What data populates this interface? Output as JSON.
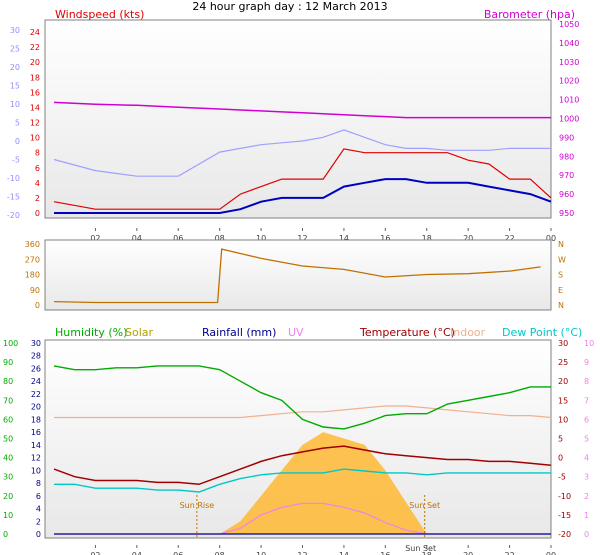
{
  "title": "24 hour graph day : 12 March 2013",
  "colors": {
    "wind": "#e00000",
    "gust": "#e00000",
    "avg": "#0000c0",
    "baro": "#d000d0",
    "temp_axis": "#9090ff",
    "direction": "#c07000",
    "humidity": "#00aa00",
    "solar": "#b0a000",
    "rainfall": "#00008b",
    "uv": "#ee82ee",
    "temperature": "#a00000",
    "indoor": "#f0b090",
    "dewpoint": "#00c8c8",
    "feel": "#a0a0ff",
    "solar_fill": "#ffb833",
    "plot_bg": "#e8e8e8"
  },
  "x_ticks": [
    "02",
    "04",
    "06",
    "08",
    "10",
    "12",
    "14",
    "16",
    "18",
    "20",
    "22",
    "00"
  ],
  "panel1": {
    "label_wind": "Windspeed (kts)",
    "label_baro": "Barometer (hpa)",
    "left_outer_ticks": [
      "30",
      "25",
      "20",
      "15",
      "10",
      "5",
      "0",
      "-5",
      "-10",
      "-15",
      "-20"
    ],
    "left_inner_ticks": [
      "24",
      "22",
      "20",
      "18",
      "16",
      "14",
      "12",
      "10",
      "8",
      "6",
      "4",
      "2",
      "0"
    ],
    "right_ticks": [
      "1050",
      "1040",
      "1030",
      "1020",
      "1010",
      "1000",
      "990",
      "980",
      "970",
      "960",
      "950"
    ]
  },
  "panel2": {
    "left_ticks": [
      "360",
      "270",
      "180",
      "90",
      "0"
    ],
    "right_ticks": [
      "N",
      "W",
      "S",
      "E",
      "N"
    ]
  },
  "panel3": {
    "labels": {
      "humidity": "Humidity (%)",
      "solar": "Solar",
      "rainfall": "Rainfall (mm)",
      "uv": "UV",
      "temperature": "Temperature (°C)",
      "indoor": "Indoor",
      "dewpoint": "Dew Point (°C)"
    },
    "humidity_ticks": [
      "100",
      "90",
      "80",
      "70",
      "60",
      "50",
      "40",
      "30",
      "20",
      "10",
      "0"
    ],
    "rain_ticks": [
      "30",
      "28",
      "26",
      "24",
      "22",
      "20",
      "18",
      "16",
      "14",
      "12",
      "10",
      "8",
      "6",
      "4",
      "2",
      "0"
    ],
    "temp_ticks": [
      "30",
      "25",
      "20",
      "15",
      "10",
      "5",
      "0",
      "-5",
      "-10",
      "-15",
      "-20"
    ],
    "uv_ticks": [
      "10",
      "9",
      "8",
      "7",
      "6",
      "5",
      "4",
      "3",
      "2",
      "1",
      "0"
    ],
    "sunrise": "Sun Rise",
    "sunset": "Sun Set",
    "sunrise_axis": "Sun Rise",
    "sunset_axis": "Sun Set"
  },
  "chart_data": [
    {
      "type": "line",
      "title": "24 hour graph day : 12 March 2013",
      "x_hours": [
        0,
        2,
        4,
        6,
        8,
        9,
        10,
        11,
        12,
        13,
        14,
        15,
        16,
        17,
        18,
        19,
        20,
        21,
        22,
        23,
        24
      ],
      "series": [
        {
          "name": "Windspeed (kts)",
          "values": [
            1.5,
            0.5,
            0.5,
            0.5,
            0.5,
            2.5,
            3.5,
            4.5,
            4.5,
            4.5,
            8.5,
            8,
            8,
            8,
            8,
            8,
            7,
            6.5,
            4.5,
            4.5,
            2
          ]
        },
        {
          "name": "Barometer (hpa)",
          "values": [
            1008.5,
            1007.5,
            1007,
            1006,
            1005,
            1004.5,
            1004,
            1003.5,
            1003,
            1002.5,
            1002,
            1001.5,
            1001,
            1000.5,
            1000.5,
            1000.5,
            1000.5,
            1000.5,
            1000.5,
            1000.5,
            1000.5
          ]
        },
        {
          "values": [
            -5,
            -8,
            -9.5,
            -9.5,
            -3,
            -2,
            -1,
            -0.5,
            0,
            1,
            3,
            1,
            -1,
            -2,
            -2,
            -2.5,
            -2.5,
            -2.5,
            -2,
            -2,
            -2
          ]
        },
        {
          "values": [
            0,
            0,
            0,
            0,
            0,
            0.5,
            1.5,
            2,
            2,
            2,
            3.5,
            4,
            4.5,
            4.5,
            4,
            4,
            4,
            3.5,
            3,
            2.5,
            1.5
          ]
        }
      ],
      "ylim_wind": [
        0,
        25
      ],
      "ylim_baro": [
        950,
        1050
      ]
    },
    {
      "type": "line",
      "x_hours": [
        0,
        2,
        4,
        6,
        7.9,
        8.1,
        10,
        12,
        14,
        16,
        18,
        20,
        22,
        23.5
      ],
      "series": [
        {
          "values": [
            20,
            15,
            15,
            15,
            15,
            330,
            275,
            230,
            210,
            165,
            180,
            185,
            200,
            225
          ]
        }
      ],
      "ylim": [
        0,
        360
      ]
    },
    {
      "type": "line",
      "x_hours": [
        0,
        1,
        2,
        3,
        4,
        5,
        6,
        7,
        8,
        9,
        10,
        11,
        12,
        13,
        14,
        15,
        16,
        17,
        18,
        19,
        20,
        21,
        22,
        23,
        24
      ],
      "series": [
        {
          "name": "Humidity (%)",
          "values": [
            88,
            86,
            86,
            87,
            87,
            88,
            88,
            88,
            86,
            80,
            74,
            70,
            60,
            56,
            55,
            58,
            62,
            63,
            63,
            68,
            70,
            72,
            74,
            77,
            77
          ]
        },
        {
          "name": "Temperature (°C)",
          "values": [
            -3,
            -5,
            -6,
            -6,
            -6,
            -6.5,
            -6.5,
            -7,
            -5,
            -3,
            -1,
            0.5,
            1.5,
            2.5,
            3,
            2,
            1,
            0.5,
            0,
            -0.5,
            -0.5,
            -1,
            -1,
            -1.5,
            -2
          ]
        },
        {
          "name": "Dew Point (°C)",
          "values": [
            -7,
            -7,
            -8,
            -8,
            -8,
            -8.5,
            -8.5,
            -9,
            -7,
            -5.5,
            -4.5,
            -4,
            -4,
            -4,
            -3,
            -3.5,
            -4,
            -4,
            -4.5,
            -4,
            -4,
            -4,
            -4,
            -4,
            -4
          ]
        },
        {
          "name": "Indoor",
          "values": [
            10.5,
            10.5,
            10.5,
            10.5,
            10.5,
            10.5,
            10.5,
            10.5,
            10.5,
            10.5,
            11,
            11.5,
            12,
            12,
            12.5,
            13,
            13.5,
            13.5,
            13,
            12.5,
            12,
            11.5,
            11,
            11,
            10.5
          ]
        },
        {
          "name": "Solar",
          "values": [
            0,
            0,
            0,
            0,
            0,
            0,
            0,
            0,
            0,
            2,
            6,
            10,
            14,
            16,
            15,
            14,
            10,
            5,
            0,
            0,
            0,
            0,
            0,
            0,
            0
          ]
        },
        {
          "name": "UV",
          "values": [
            0,
            0,
            0,
            0,
            0,
            0,
            0,
            0,
            0,
            0.3,
            1,
            1.4,
            1.6,
            1.6,
            1.4,
            1.1,
            0.6,
            0.2,
            0,
            0,
            0,
            0,
            0,
            0,
            0
          ]
        },
        {
          "name": "Rainfall (mm)",
          "values": [
            0,
            0,
            0,
            0,
            0,
            0,
            0,
            0,
            0,
            0,
            0,
            0,
            0,
            0,
            0,
            0,
            0,
            0,
            0,
            0,
            0,
            0,
            0,
            0,
            0
          ]
        }
      ],
      "sunrise_hour": 6.9,
      "sunset_hour": 17.9,
      "ylim_humidity": [
        0,
        100
      ],
      "ylim_temperature": [
        -20,
        30
      ],
      "ylim_rainfall": [
        0,
        30
      ],
      "ylim_uv": [
        0,
        10
      ]
    }
  ]
}
